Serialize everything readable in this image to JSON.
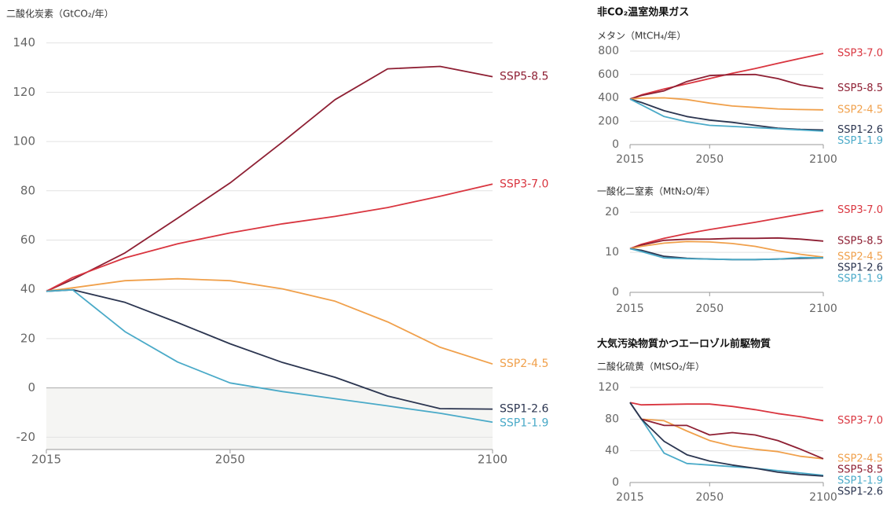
{
  "chart_data": [
    {
      "type": "line",
      "title": "二酸化炭素（GtCO₂/年）",
      "x": [
        2015,
        2020,
        2030,
        2040,
        2050,
        2060,
        2070,
        2080,
        2090,
        2100
      ],
      "xlim": [
        2015,
        2100
      ],
      "xticks": [
        2015,
        2050,
        2100
      ],
      "ylim": [
        -25,
        145
      ],
      "yticks": [
        -20,
        0,
        20,
        40,
        60,
        80,
        100,
        120,
        140
      ],
      "grid": true,
      "shade_below_zero": true,
      "series": [
        {
          "name": "SSP5-8.5",
          "color": "#8e1f33",
          "values": [
            39.2,
            44,
            54.8,
            68.9,
            83.2,
            99.8,
            117,
            129.5,
            130.5,
            126.3
          ]
        },
        {
          "name": "SSP3-7.0",
          "color": "#d9353f",
          "values": [
            39.2,
            44.8,
            52.8,
            58.5,
            62.9,
            66.6,
            69.6,
            73.2,
            77.8,
            82.7
          ]
        },
        {
          "name": "SSP2-4.5",
          "color": "#f0a04b",
          "values": [
            39.2,
            40.6,
            43.5,
            44.3,
            43.5,
            40.2,
            35.2,
            26.8,
            16.5,
            9.7
          ]
        },
        {
          "name": "SSP1-2.6",
          "color": "#2b3550",
          "values": [
            39.2,
            39.8,
            34.7,
            26.5,
            17.9,
            10.3,
            4.3,
            -3.3,
            -8.4,
            -8.6
          ]
        },
        {
          "name": "SSP1-1.9",
          "color": "#4aaac8",
          "values": [
            39.2,
            39.8,
            22.8,
            10.5,
            2.0,
            -1.5,
            -4.4,
            -7.3,
            -10.3,
            -13.9
          ]
        }
      ]
    },
    {
      "type": "line",
      "section": "非CO₂温室効果ガス",
      "title": "メタン（MtCH₄/年）",
      "x": [
        2015,
        2020,
        2030,
        2040,
        2050,
        2060,
        2070,
        2080,
        2090,
        2100
      ],
      "xlim": [
        2015,
        2100
      ],
      "xticks": [
        2015,
        2050,
        2100
      ],
      "ylim": [
        0,
        800
      ],
      "yticks": [
        0,
        200,
        400,
        600,
        800
      ],
      "grid": true,
      "series": [
        {
          "name": "SSP3-7.0",
          "color": "#d9353f",
          "values": [
            389,
            425,
            475,
            520,
            565,
            610,
            650,
            695,
            738,
            780
          ]
        },
        {
          "name": "SSP5-8.5",
          "color": "#8e1f33",
          "values": [
            389,
            420,
            460,
            540,
            590,
            598,
            600,
            565,
            510,
            480
          ]
        },
        {
          "name": "SSP2-4.5",
          "color": "#f0a04b",
          "values": [
            389,
            398,
            400,
            385,
            355,
            330,
            318,
            305,
            300,
            297
          ]
        },
        {
          "name": "SSP1-2.6",
          "color": "#2b3550",
          "values": [
            389,
            360,
            290,
            240,
            210,
            190,
            165,
            140,
            130,
            125
          ]
        },
        {
          "name": "SSP1-1.9",
          "color": "#4aaac8",
          "values": [
            389,
            340,
            240,
            195,
            165,
            155,
            145,
            135,
            125,
            115
          ]
        }
      ]
    },
    {
      "type": "line",
      "title": "一酸化二窒素（MtN₂O/年）",
      "x": [
        2015,
        2020,
        2030,
        2040,
        2050,
        2060,
        2070,
        2080,
        2090,
        2100
      ],
      "xlim": [
        2015,
        2100
      ],
      "xticks": [
        2015,
        2050,
        2100
      ],
      "ylim": [
        0,
        22
      ],
      "yticks": [
        0,
        10,
        20
      ],
      "grid": true,
      "series": [
        {
          "name": "SSP3-7.0",
          "color": "#d9353f",
          "values": [
            10.9,
            12,
            13.5,
            14.7,
            15.7,
            16.6,
            17.5,
            18.5,
            19.5,
            20.5
          ]
        },
        {
          "name": "SSP5-8.5",
          "color": "#8e1f33",
          "values": [
            10.9,
            11.8,
            13,
            13.3,
            13.3,
            13.5,
            13.5,
            13.6,
            13.3,
            12.8
          ]
        },
        {
          "name": "SSP2-4.5",
          "color": "#f0a04b",
          "values": [
            10.9,
            11.5,
            12.3,
            12.7,
            12.6,
            12.2,
            11.5,
            10.4,
            9.5,
            8.8
          ]
        },
        {
          "name": "SSP1-2.6",
          "color": "#2b3550",
          "values": [
            10.9,
            10.5,
            9,
            8.5,
            8.3,
            8.2,
            8.2,
            8.3,
            8.5,
            8.6
          ]
        },
        {
          "name": "SSP1-1.9",
          "color": "#4aaac8",
          "values": [
            10.9,
            10.2,
            8.6,
            8.4,
            8.3,
            8.2,
            8.2,
            8.3,
            8.7,
            8.6
          ]
        }
      ]
    },
    {
      "type": "line",
      "section": "大気汚染物質かつエーロゾル前駆物質",
      "title": "二酸化硫黄（MtSO₂/年）",
      "x": [
        2015,
        2020,
        2030,
        2040,
        2050,
        2060,
        2070,
        2080,
        2090,
        2100
      ],
      "xlim": [
        2015,
        2100
      ],
      "xticks": [
        2015,
        2050,
        2100
      ],
      "ylim": [
        0,
        125
      ],
      "yticks": [
        0,
        40,
        80,
        120
      ],
      "grid": true,
      "series": [
        {
          "name": "SSP3-7.0",
          "color": "#d9353f",
          "values": [
            101,
            98,
            98.5,
            99,
            99,
            96,
            92,
            87,
            83,
            78
          ]
        },
        {
          "name": "SSP2-4.5",
          "color": "#f0a04b",
          "values": [
            101,
            80,
            78,
            65,
            53,
            46,
            42,
            39,
            33,
            30
          ]
        },
        {
          "name": "SSP5-8.5",
          "color": "#8e1f33",
          "values": [
            101,
            80,
            72,
            72,
            60,
            63,
            60,
            53,
            42,
            30
          ]
        },
        {
          "name": "SSP1-1.9",
          "color": "#4aaac8",
          "values": [
            101,
            80,
            37,
            24,
            22,
            20,
            18,
            15,
            12,
            9
          ]
        },
        {
          "name": "SSP1-2.6",
          "color": "#2b3550",
          "values": [
            101,
            80,
            52,
            35,
            27,
            22,
            18,
            13,
            10,
            8
          ]
        }
      ]
    }
  ]
}
